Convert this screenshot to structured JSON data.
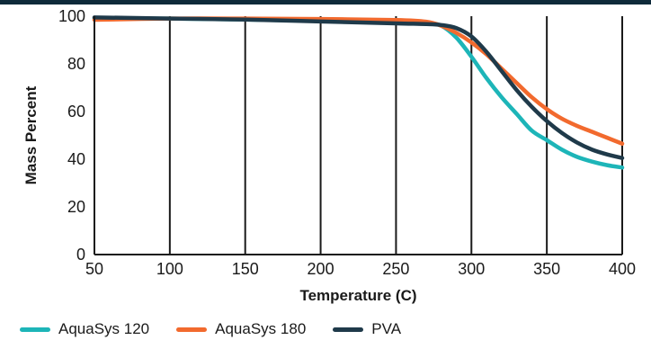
{
  "chart_data": {
    "type": "line",
    "title": "",
    "xlabel": "Temperature (C)",
    "ylabel": "Mass Percent",
    "xlim": [
      50,
      400
    ],
    "ylim": [
      0,
      100
    ],
    "xticks": [
      "50",
      "100",
      "150",
      "200",
      "250",
      "300",
      "350",
      "400"
    ],
    "yticks": [
      "0",
      "20",
      "40",
      "60",
      "80",
      "100"
    ],
    "grid": "vertical",
    "legend_position": "bottom",
    "series": [
      {
        "name": "AquaSys 120",
        "color": "#1db5b8",
        "x": [
          50,
          100,
          150,
          200,
          250,
          270,
          280,
          290,
          300,
          310,
          320,
          330,
          340,
          350,
          360,
          370,
          380,
          390,
          400
        ],
        "y": [
          99,
          99,
          98.6,
          98,
          97.3,
          97,
          96,
          91,
          83,
          74,
          66,
          59,
          52,
          48,
          44,
          41,
          39,
          37.5,
          36.5
        ]
      },
      {
        "name": "AquaSys 180",
        "color": "#f26a2e",
        "x": [
          50,
          100,
          150,
          200,
          250,
          270,
          280,
          290,
          300,
          310,
          320,
          330,
          340,
          350,
          360,
          370,
          380,
          390,
          400
        ],
        "y": [
          98.5,
          99,
          99,
          98.8,
          98.4,
          97.7,
          96,
          93,
          89,
          84,
          78,
          72,
          66,
          61,
          57,
          54,
          51.5,
          49,
          46.5
        ]
      },
      {
        "name": "PVA",
        "color": "#1f3a4a",
        "x": [
          50,
          100,
          150,
          200,
          250,
          270,
          280,
          290,
          300,
          310,
          320,
          330,
          340,
          350,
          360,
          370,
          380,
          390,
          400
        ],
        "y": [
          99.5,
          99,
          98.6,
          97.8,
          97,
          96.7,
          96.3,
          95,
          91.5,
          85,
          77,
          69,
          62,
          56,
          51,
          47,
          44,
          42,
          40.5
        ]
      }
    ]
  },
  "colors": {
    "top_bar": "#0e2a3a",
    "gridline": "#1a1a1a",
    "text": "#1a1a1a"
  }
}
